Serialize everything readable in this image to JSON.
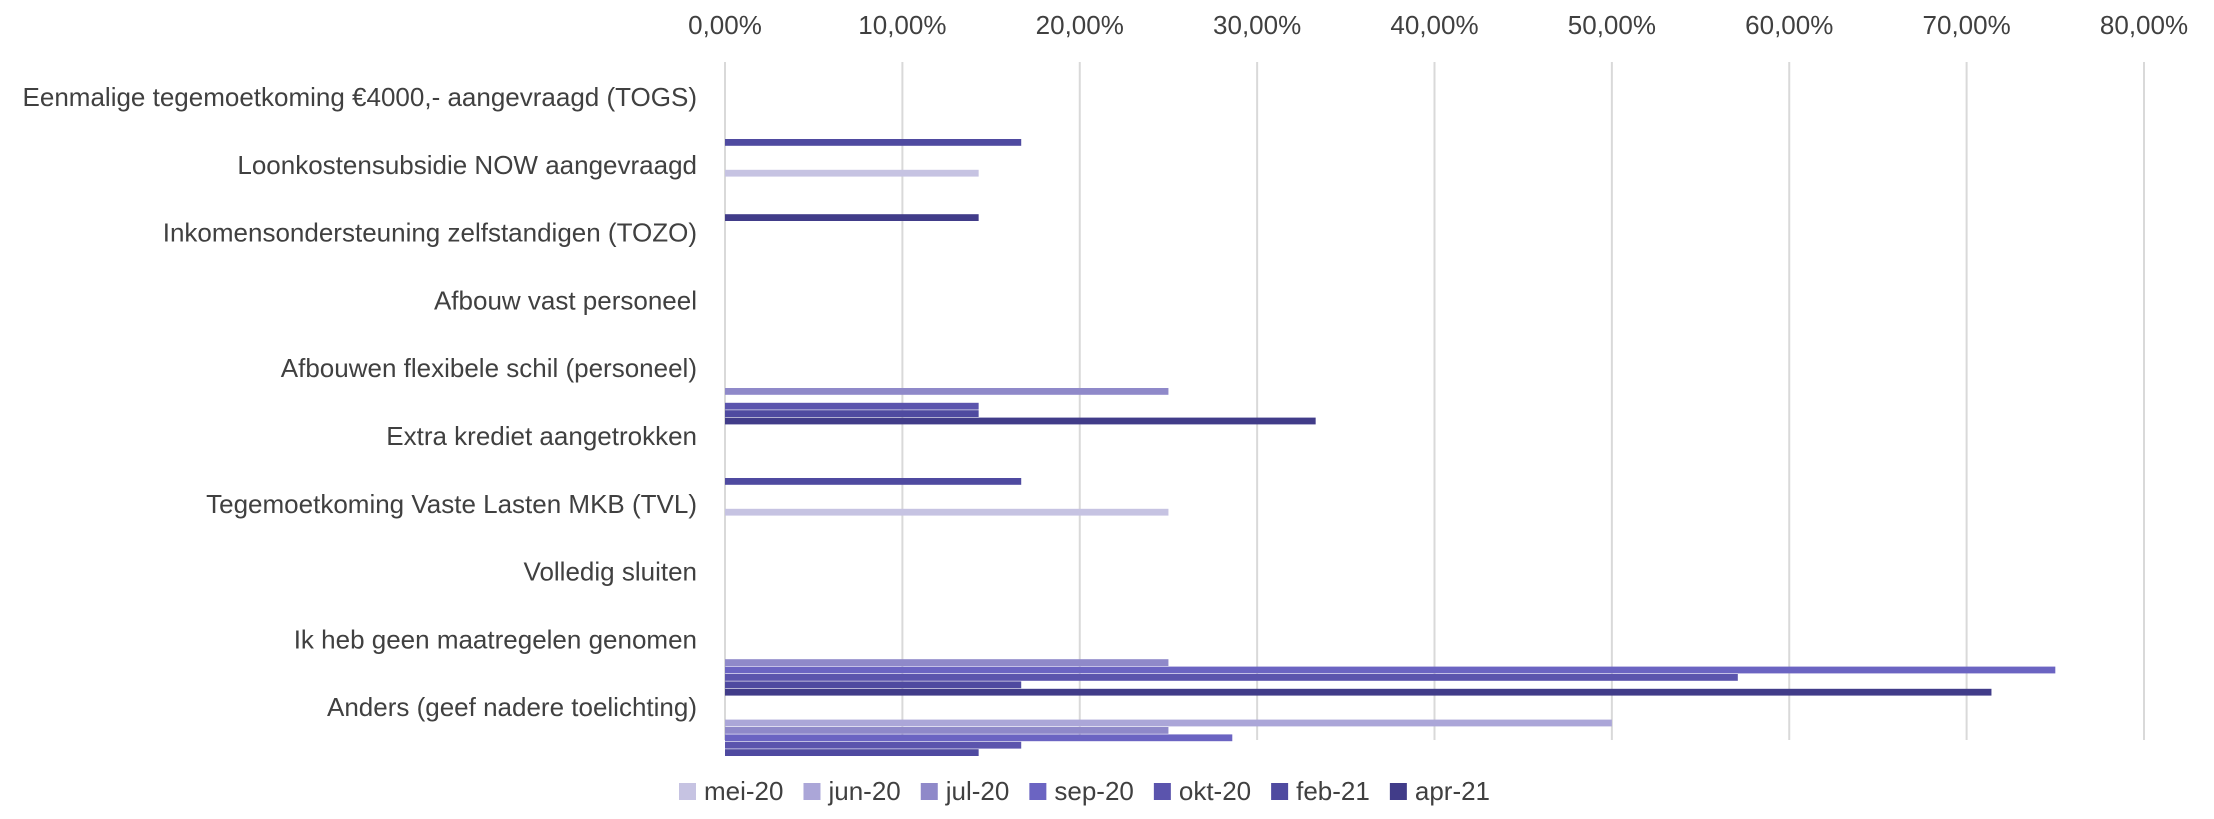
{
  "chart_data": {
    "type": "bar",
    "orientation": "horizontal",
    "title": "",
    "xlabel": "",
    "ylabel": "",
    "xlim": [
      0,
      0.8
    ],
    "x_ticks": [
      "0,00%",
      "10,00%",
      "20,00%",
      "30,00%",
      "40,00%",
      "50,00%",
      "60,00%",
      "70,00%",
      "80,00%"
    ],
    "x_tick_values": [
      0,
      0.1,
      0.2,
      0.3,
      0.4,
      0.5,
      0.6,
      0.7,
      0.8
    ],
    "x_axis_position": "top",
    "grid": true,
    "legend_position": "bottom",
    "categories": [
      "Eenmalige tegemoetkoming €4000,- aangevraagd (TOGS)",
      "Loonkostensubsidie NOW aangevraagd",
      "Inkomensondersteuning zelfstandigen (TOZO)",
      "Afbouw vast personeel",
      "Afbouwen flexibele schil (personeel)",
      "Extra krediet aangetrokken",
      "Tegemoetkoming Vaste Lasten MKB (TVL)",
      "Volledig sluiten",
      "Ik heb geen maatregelen genomen",
      "Anders (geef nadere toelichting)"
    ],
    "series": [
      {
        "name": "mei-20",
        "color": "#c6c3e2",
        "values": [
          0,
          0.143,
          0,
          0,
          0,
          0,
          0.25,
          0,
          0,
          0
        ]
      },
      {
        "name": "jun-20",
        "color": "#aba6d8",
        "values": [
          0,
          0,
          0,
          0,
          0,
          0,
          0,
          0,
          0,
          0.5
        ]
      },
      {
        "name": "jul-20",
        "color": "#8f89c9",
        "values": [
          0,
          0,
          0,
          0,
          0.25,
          0,
          0,
          0,
          0.25,
          0.25
        ]
      },
      {
        "name": "sep-20",
        "color": "#6b64c2",
        "values": [
          0,
          0,
          0,
          0,
          0,
          0,
          0,
          0,
          0.75,
          0.286
        ]
      },
      {
        "name": "okt-20",
        "color": "#5b54ad",
        "values": [
          0,
          0,
          0,
          0,
          0.143,
          0,
          0,
          0,
          0.571,
          0.167
        ]
      },
      {
        "name": "feb-21",
        "color": "#4f4aa0",
        "values": [
          0.167,
          0,
          0,
          0,
          0.143,
          0.167,
          0,
          0,
          0.167,
          0.143
        ]
      },
      {
        "name": "apr-21",
        "color": "#413c89",
        "values": [
          0,
          0.143,
          0,
          0,
          0.333,
          0,
          0,
          0,
          0.714,
          0
        ]
      }
    ]
  }
}
